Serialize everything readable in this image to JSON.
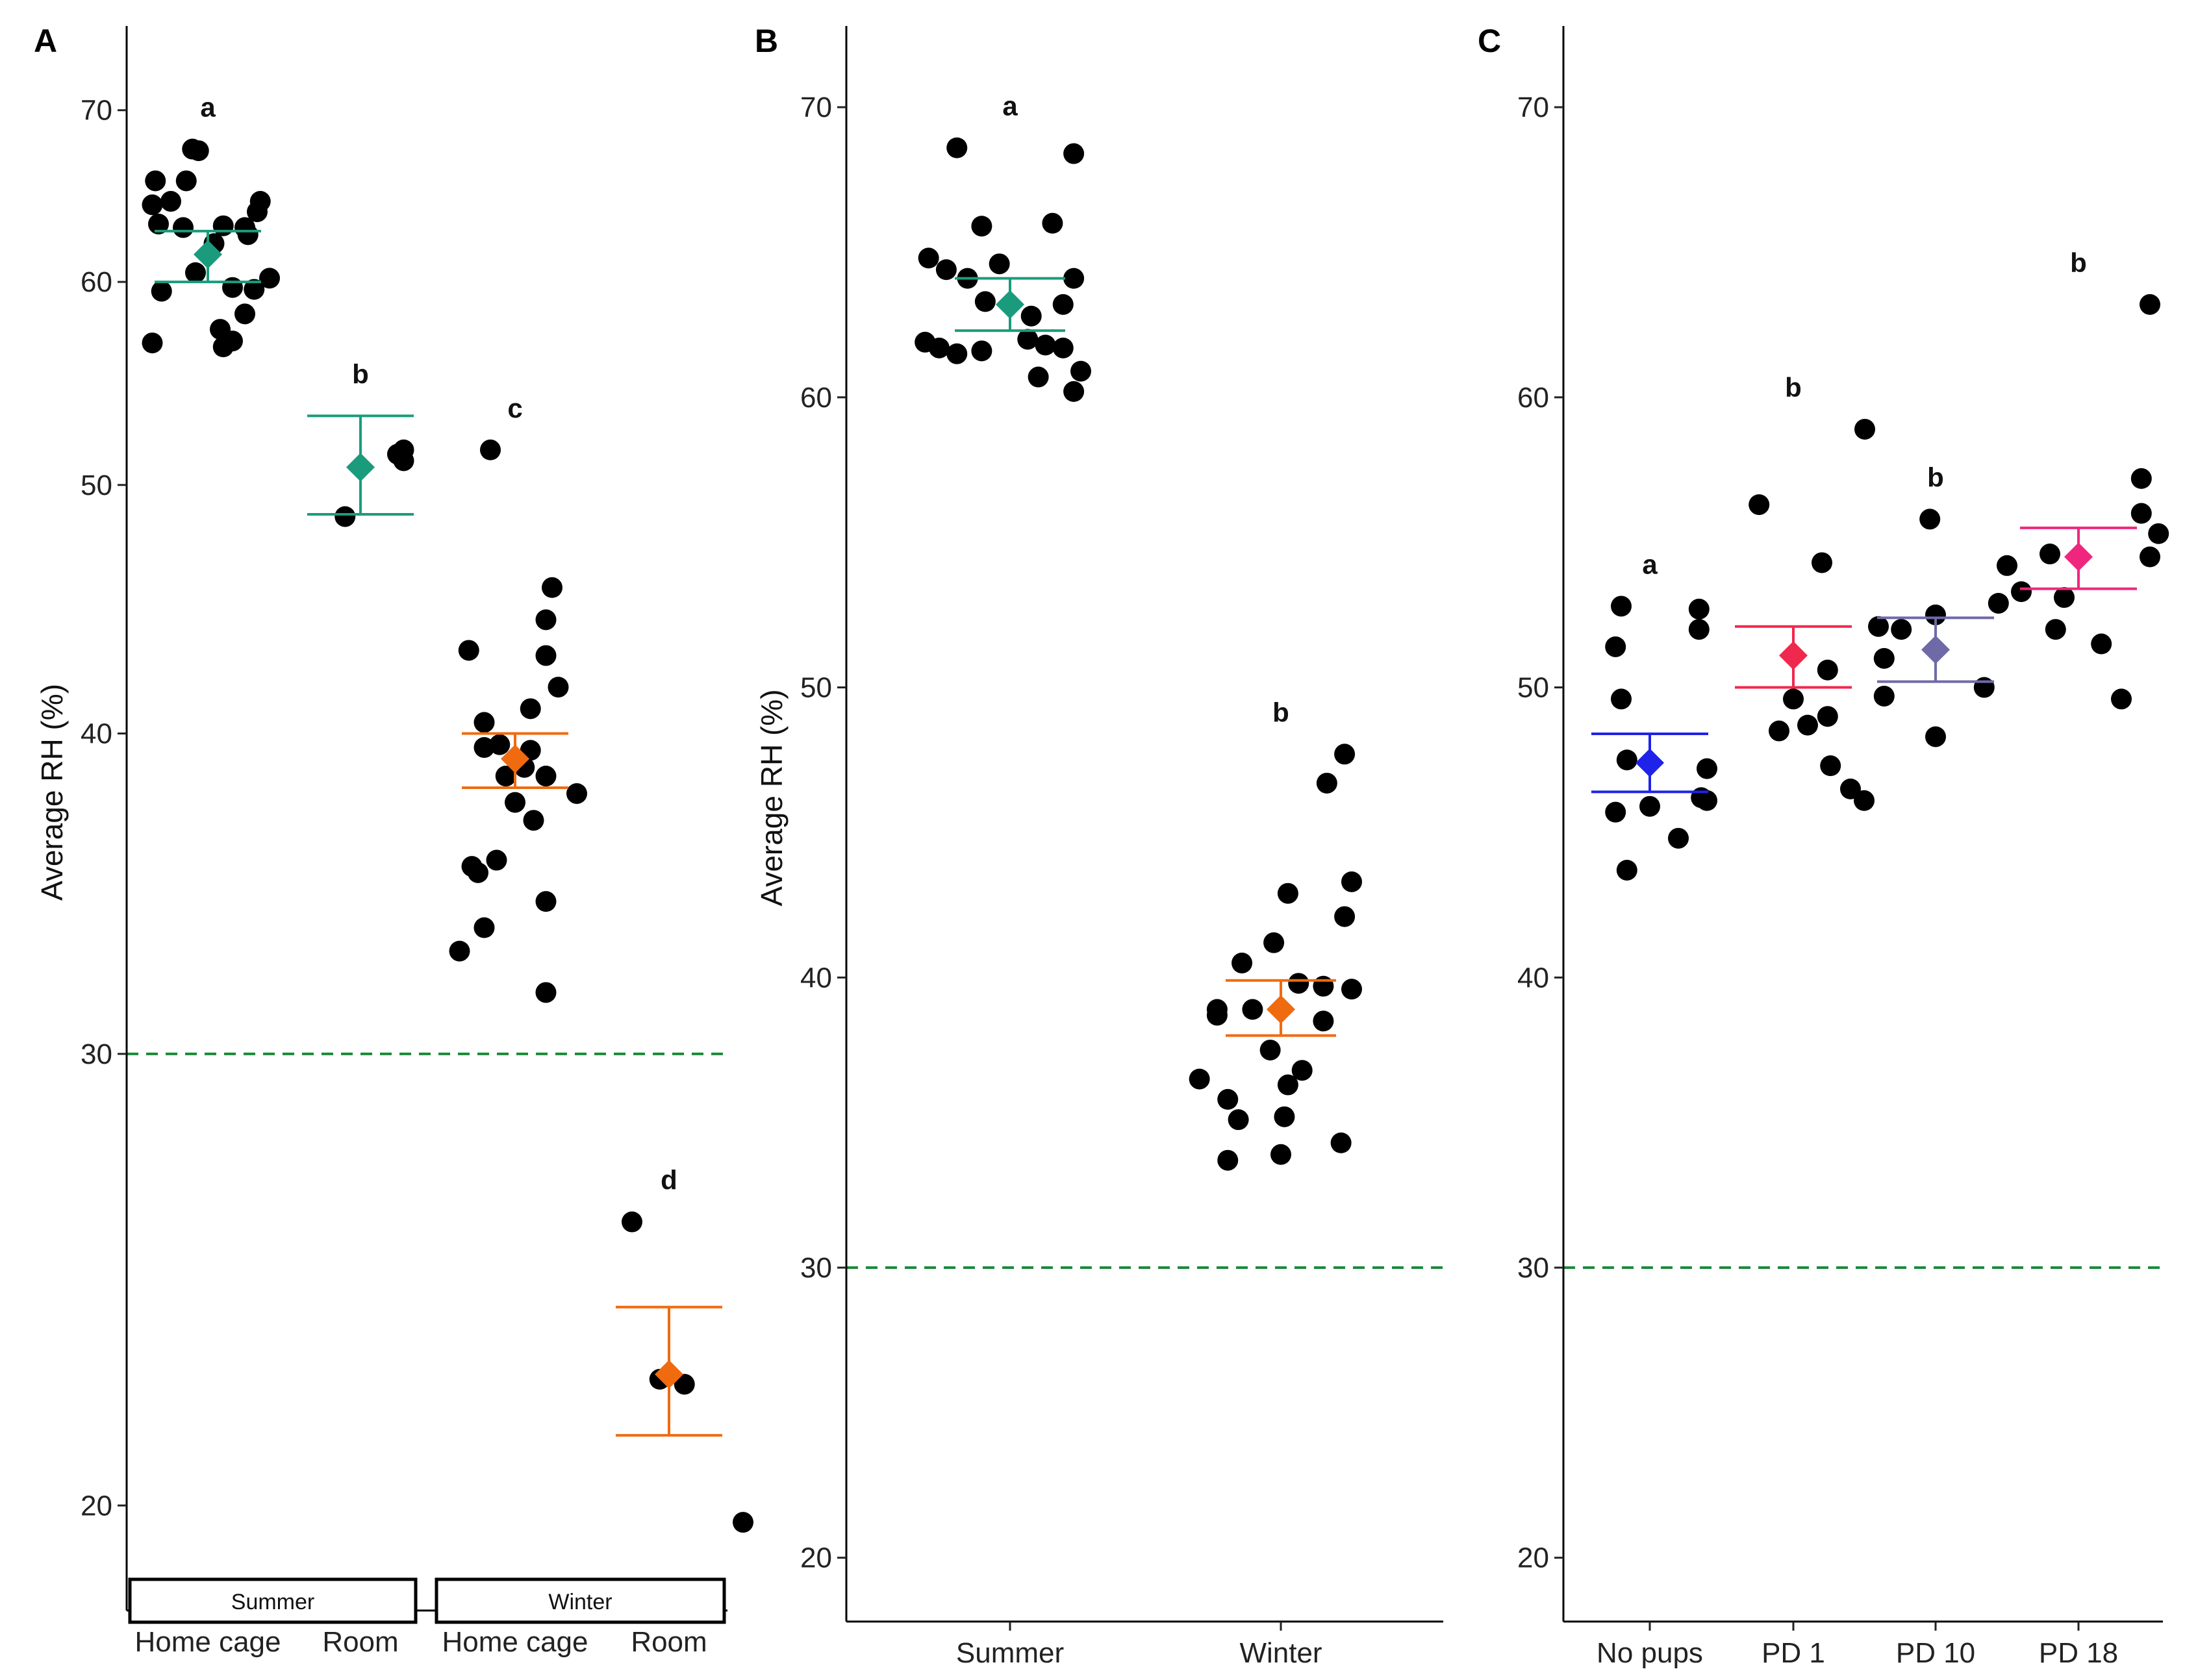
{
  "chart_data": [
    {
      "type": "scatter",
      "panel": "A",
      "ylabel": "Average RH (%)",
      "scale": "log",
      "ylim": [
        18.2,
        75.5
      ],
      "yticks": [
        20,
        30,
        40,
        50,
        60,
        70
      ],
      "reference_line": 30,
      "reference_color": "#1b8a3a",
      "categories": [
        "Home cage",
        "Room",
        "Home cage",
        "Room"
      ],
      "facets": [
        {
          "label": "Summer",
          "categories": [
            0,
            1
          ]
        },
        {
          "label": "Winter",
          "categories": [
            2,
            3
          ]
        }
      ],
      "groups": [
        {
          "category": 0,
          "color": "#1a9c7c",
          "mean": 61.5,
          "upper": 62.8,
          "lower": 60.0,
          "sig": "a",
          "points": [
            {
              "dx": -0.05,
              "y": 67.6
            },
            {
              "dx": -0.03,
              "y": 67.5
            },
            {
              "dx": -0.17,
              "y": 65.7
            },
            {
              "dx": -0.07,
              "y": 65.7
            },
            {
              "dx": -0.12,
              "y": 64.5
            },
            {
              "dx": -0.18,
              "y": 64.3
            },
            {
              "dx": 0.17,
              "y": 64.5
            },
            {
              "dx": 0.16,
              "y": 63.9
            },
            {
              "dx": -0.16,
              "y": 63.2
            },
            {
              "dx": -0.08,
              "y": 63.0
            },
            {
              "dx": 0.05,
              "y": 63.1
            },
            {
              "dx": 0.12,
              "y": 63.0
            },
            {
              "dx": 0.02,
              "y": 62.1
            },
            {
              "dx": 0.13,
              "y": 62.6
            },
            {
              "dx": -0.04,
              "y": 60.5
            },
            {
              "dx": 0.2,
              "y": 60.2
            },
            {
              "dx": 0.08,
              "y": 59.7
            },
            {
              "dx": 0.15,
              "y": 59.6
            },
            {
              "dx": -0.15,
              "y": 59.5
            },
            {
              "dx": 0.12,
              "y": 58.3
            },
            {
              "dx": 0.04,
              "y": 57.5
            },
            {
              "dx": -0.18,
              "y": 56.8
            },
            {
              "dx": 0.08,
              "y": 56.9
            },
            {
              "dx": 0.05,
              "y": 56.6
            }
          ]
        },
        {
          "category": 1,
          "color": "#1a9c7c",
          "mean": 50.8,
          "upper": 53.2,
          "lower": 48.7,
          "sig": "b",
          "points": [
            {
              "dx": 0.14,
              "y": 51.6
            },
            {
              "dx": 0.12,
              "y": 51.4
            },
            {
              "dx": 0.14,
              "y": 51.1
            },
            {
              "dx": -0.05,
              "y": 48.6
            }
          ]
        },
        {
          "category": 2,
          "color": "#f06a10",
          "mean": 39.1,
          "upper": 40.0,
          "lower": 38.1,
          "sig": "c",
          "points": [
            {
              "dx": -0.08,
              "y": 51.6
            },
            {
              "dx": 0.12,
              "y": 45.6
            },
            {
              "dx": 0.1,
              "y": 44.3
            },
            {
              "dx": -0.15,
              "y": 43.1
            },
            {
              "dx": 0.1,
              "y": 42.9
            },
            {
              "dx": 0.14,
              "y": 41.7
            },
            {
              "dx": 0.05,
              "y": 40.9
            },
            {
              "dx": -0.1,
              "y": 40.4
            },
            {
              "dx": -0.05,
              "y": 39.6
            },
            {
              "dx": -0.1,
              "y": 39.5
            },
            {
              "dx": 0.05,
              "y": 39.4
            },
            {
              "dx": 0.03,
              "y": 38.8
            },
            {
              "dx": -0.03,
              "y": 38.5
            },
            {
              "dx": 0.1,
              "y": 38.5
            },
            {
              "dx": 0.2,
              "y": 37.9
            },
            {
              "dx": 0.0,
              "y": 37.6
            },
            {
              "dx": 0.06,
              "y": 37.0
            },
            {
              "dx": -0.06,
              "y": 35.7
            },
            {
              "dx": -0.14,
              "y": 35.5
            },
            {
              "dx": -0.12,
              "y": 35.3
            },
            {
              "dx": 0.1,
              "y": 34.4
            },
            {
              "dx": -0.1,
              "y": 33.6
            },
            {
              "dx": -0.18,
              "y": 32.9
            },
            {
              "dx": 0.1,
              "y": 31.7
            }
          ]
        },
        {
          "category": 3,
          "color": "#f06a10",
          "mean": 22.5,
          "upper": 23.9,
          "lower": 21.3,
          "sig": "d",
          "points": [
            {
              "dx": -0.12,
              "y": 25.8
            },
            {
              "dx": -0.03,
              "y": 22.4
            },
            {
              "dx": 0.05,
              "y": 22.3
            },
            {
              "dx": 0.24,
              "y": 19.7
            }
          ]
        }
      ]
    },
    {
      "type": "scatter",
      "panel": "B",
      "ylabel": "Average RH (%)",
      "ylim": [
        17.8,
        72.8
      ],
      "yticks": [
        20,
        30,
        40,
        50,
        60,
        70
      ],
      "reference_line": 30,
      "reference_color": "#1b8a3a",
      "categories": [
        "Summer",
        "Winter"
      ],
      "groups": [
        {
          "category": 0,
          "color": "#1a9c7c",
          "mean": 63.2,
          "upper": 64.1,
          "lower": 62.3,
          "sig": "a",
          "points": [
            {
              "dx": -0.15,
              "y": 68.6
            },
            {
              "dx": 0.18,
              "y": 68.4
            },
            {
              "dx": -0.08,
              "y": 65.9
            },
            {
              "dx": 0.12,
              "y": 66.0
            },
            {
              "dx": -0.23,
              "y": 64.8
            },
            {
              "dx": -0.18,
              "y": 64.4
            },
            {
              "dx": -0.12,
              "y": 64.1
            },
            {
              "dx": -0.03,
              "y": 64.6
            },
            {
              "dx": 0.18,
              "y": 64.1
            },
            {
              "dx": -0.07,
              "y": 63.3
            },
            {
              "dx": 0.15,
              "y": 63.2
            },
            {
              "dx": 0.06,
              "y": 62.8
            },
            {
              "dx": -0.24,
              "y": 61.9
            },
            {
              "dx": -0.2,
              "y": 61.7
            },
            {
              "dx": 0.05,
              "y": 62.0
            },
            {
              "dx": 0.1,
              "y": 61.8
            },
            {
              "dx": 0.15,
              "y": 61.7
            },
            {
              "dx": -0.15,
              "y": 61.5
            },
            {
              "dx": -0.08,
              "y": 61.6
            },
            {
              "dx": 0.2,
              "y": 60.9
            },
            {
              "dx": 0.08,
              "y": 60.7
            },
            {
              "dx": 0.18,
              "y": 60.2
            }
          ]
        },
        {
          "category": 1,
          "color": "#f06a10",
          "mean": 38.9,
          "upper": 39.9,
          "lower": 38.0,
          "sig": "b",
          "points": [
            {
              "dx": 0.18,
              "y": 47.7
            },
            {
              "dx": 0.13,
              "y": 46.7
            },
            {
              "dx": 0.2,
              "y": 43.3
            },
            {
              "dx": 0.02,
              "y": 42.9
            },
            {
              "dx": 0.18,
              "y": 42.1
            },
            {
              "dx": -0.02,
              "y": 41.2
            },
            {
              "dx": -0.11,
              "y": 40.5
            },
            {
              "dx": 0.05,
              "y": 39.8
            },
            {
              "dx": 0.12,
              "y": 39.7
            },
            {
              "dx": 0.2,
              "y": 39.6
            },
            {
              "dx": -0.18,
              "y": 38.9
            },
            {
              "dx": -0.08,
              "y": 38.9
            },
            {
              "dx": -0.18,
              "y": 38.7
            },
            {
              "dx": 0.12,
              "y": 38.5
            },
            {
              "dx": -0.03,
              "y": 37.5
            },
            {
              "dx": 0.06,
              "y": 36.8
            },
            {
              "dx": -0.23,
              "y": 36.5
            },
            {
              "dx": 0.02,
              "y": 36.3
            },
            {
              "dx": -0.15,
              "y": 35.8
            },
            {
              "dx": -0.12,
              "y": 35.1
            },
            {
              "dx": 0.01,
              "y": 35.2
            },
            {
              "dx": 0.17,
              "y": 34.3
            },
            {
              "dx": 0.0,
              "y": 33.9
            },
            {
              "dx": -0.15,
              "y": 33.7
            }
          ]
        }
      ]
    },
    {
      "type": "scatter",
      "panel": "C",
      "ylabel": "",
      "ylim": [
        17.8,
        72.8
      ],
      "yticks": [
        20,
        30,
        40,
        50,
        60,
        70
      ],
      "reference_line": 30,
      "reference_color": "#1b8a3a",
      "categories": [
        "No pups",
        "PD 1",
        "PD 10",
        "PD 18"
      ],
      "groups": [
        {
          "category": 0,
          "color": "#1f22e8",
          "mean": 47.4,
          "upper": 48.4,
          "lower": 46.4,
          "sig": "a",
          "points": [
            {
              "dx": -0.1,
              "y": 52.8
            },
            {
              "dx": -0.12,
              "y": 51.4
            },
            {
              "dx": -0.1,
              "y": 49.6
            },
            {
              "dx": -0.08,
              "y": 47.5
            },
            {
              "dx": 0.2,
              "y": 47.2
            },
            {
              "dx": 0.18,
              "y": 46.2
            },
            {
              "dx": 0.2,
              "y": 46.1
            },
            {
              "dx": 0.0,
              "y": 45.9
            },
            {
              "dx": -0.12,
              "y": 45.7
            },
            {
              "dx": 0.1,
              "y": 44.8
            },
            {
              "dx": -0.08,
              "y": 43.7
            }
          ]
        },
        {
          "category": 1,
          "color": "#f0284e",
          "mean": 51.1,
          "upper": 52.1,
          "lower": 50.0,
          "sig": "b",
          "points": [
            {
              "dx": 0.25,
              "y": 58.9
            },
            {
              "dx": -0.12,
              "y": 56.3
            },
            {
              "dx": 0.1,
              "y": 54.3
            },
            {
              "dx": -0.33,
              "y": 52.7
            },
            {
              "dx": -0.33,
              "y": 52.0
            },
            {
              "dx": 0.12,
              "y": 50.6
            },
            {
              "dx": 0.0,
              "y": 49.6
            },
            {
              "dx": 0.12,
              "y": 49.0
            },
            {
              "dx": 0.05,
              "y": 48.7
            },
            {
              "dx": -0.05,
              "y": 48.5
            },
            {
              "dx": 0.13,
              "y": 47.3
            },
            {
              "dx": 0.2,
              "y": 46.5
            }
          ]
        },
        {
          "category": 2,
          "color": "#6e6aa8",
          "mean": 51.3,
          "upper": 52.4,
          "lower": 50.2,
          "sig": "b",
          "points": [
            {
              "dx": -0.02,
              "y": 55.8
            },
            {
              "dx": 0.25,
              "y": 54.2
            },
            {
              "dx": 0.22,
              "y": 52.9
            },
            {
              "dx": 0.0,
              "y": 52.5
            },
            {
              "dx": -0.2,
              "y": 52.1
            },
            {
              "dx": -0.12,
              "y": 52.0
            },
            {
              "dx": -0.18,
              "y": 51.0
            },
            {
              "dx": 0.17,
              "y": 50.0
            },
            {
              "dx": -0.18,
              "y": 49.7
            },
            {
              "dx": 0.0,
              "y": 48.3
            },
            {
              "dx": -0.25,
              "y": 46.1
            }
          ]
        },
        {
          "category": 3,
          "color": "#f0267e",
          "mean": 54.5,
          "upper": 55.5,
          "lower": 53.4,
          "sig": "b",
          "points": [
            {
              "dx": 0.25,
              "y": 63.2
            },
            {
              "dx": 0.22,
              "y": 57.2
            },
            {
              "dx": 0.22,
              "y": 56.0
            },
            {
              "dx": 0.28,
              "y": 55.3
            },
            {
              "dx": -0.1,
              "y": 54.6
            },
            {
              "dx": 0.25,
              "y": 54.5
            },
            {
              "dx": -0.2,
              "y": 53.3
            },
            {
              "dx": -0.05,
              "y": 53.1
            },
            {
              "dx": -0.08,
              "y": 52.0
            },
            {
              "dx": 0.08,
              "y": 51.5
            },
            {
              "dx": 0.15,
              "y": 49.6
            }
          ]
        }
      ]
    }
  ]
}
